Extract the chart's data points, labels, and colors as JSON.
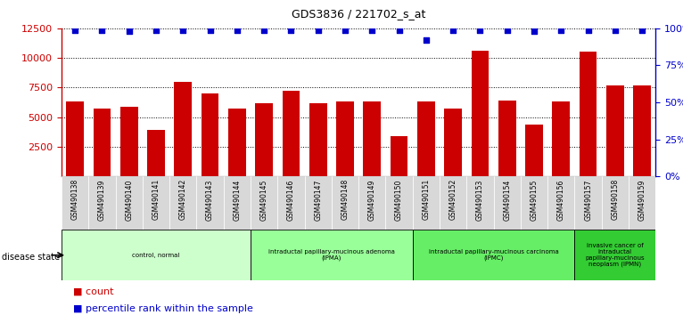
{
  "title": "GDS3836 / 221702_s_at",
  "samples": [
    "GSM490138",
    "GSM490139",
    "GSM490140",
    "GSM490141",
    "GSM490142",
    "GSM490143",
    "GSM490144",
    "GSM490145",
    "GSM490146",
    "GSM490147",
    "GSM490148",
    "GSM490149",
    "GSM490150",
    "GSM490151",
    "GSM490152",
    "GSM490153",
    "GSM490154",
    "GSM490155",
    "GSM490156",
    "GSM490157",
    "GSM490158",
    "GSM490159"
  ],
  "counts": [
    6300,
    5700,
    5900,
    3900,
    8000,
    7000,
    5700,
    6200,
    7200,
    6200,
    6300,
    6300,
    3400,
    6300,
    5700,
    10600,
    6400,
    4400,
    6300,
    10500,
    7700,
    7700
  ],
  "percentile_ranks": [
    99,
    99,
    98,
    99,
    99,
    99,
    99,
    99,
    99,
    99,
    99,
    99,
    99,
    92,
    99,
    99,
    99,
    98,
    99,
    99,
    99,
    99
  ],
  "bar_color": "#cc0000",
  "dot_color": "#0000cc",
  "ylim_left": [
    0,
    12500
  ],
  "ylim_right": [
    0,
    100
  ],
  "yticks_left": [
    2500,
    5000,
    7500,
    10000,
    12500
  ],
  "yticks_right": [
    0,
    25,
    50,
    75,
    100
  ],
  "groups": [
    {
      "label": "control, normal",
      "start": 0,
      "end": 7,
      "color": "#ccffcc"
    },
    {
      "label": "intraductal papillary-mucinous adenoma\n(IPMA)",
      "start": 7,
      "end": 13,
      "color": "#99ff99"
    },
    {
      "label": "intraductal papillary-mucinous carcinoma\n(IPMC)",
      "start": 13,
      "end": 19,
      "color": "#66ee66"
    },
    {
      "label": "invasive cancer of\nintraductal\npapillary-mucinous\nneoplasm (IPMN)",
      "start": 19,
      "end": 22,
      "color": "#33cc33"
    }
  ],
  "disease_state_label": "disease state",
  "legend_count_label": "count",
  "legend_pct_label": "percentile rank within the sample",
  "xtick_bg": "#d8d8d8",
  "plot_bg": "#ffffff",
  "spine_color": "#000000"
}
